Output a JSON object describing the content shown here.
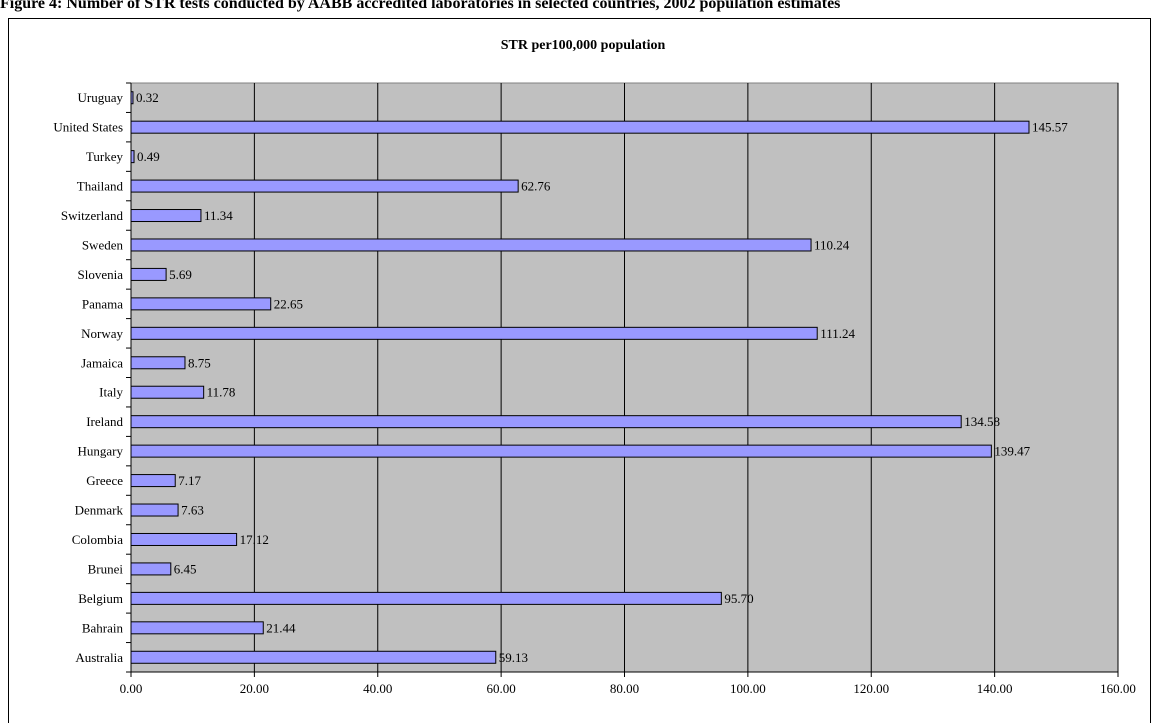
{
  "caption": "Figure 4: Number of STR tests conducted by AABB accredited laboratories in selected countries, 2002 population estimates",
  "chart_data": {
    "type": "bar",
    "orientation": "horizontal",
    "title": "STR per100,000 population",
    "xlabel": "",
    "ylabel": "",
    "xlim": [
      0,
      160
    ],
    "x_ticks": [
      "0.00",
      "20.00",
      "40.00",
      "60.00",
      "80.00",
      "100.00",
      "120.00",
      "140.00",
      "160.00"
    ],
    "grid": "vertical",
    "legend": "none",
    "colors": {
      "bar": "#9999FF",
      "plot_bg": "#C0C0C0",
      "bar_edge": "#000000"
    },
    "categories": [
      "Uruguay",
      "United States",
      "Turkey",
      "Thailand",
      "Switzerland",
      "Sweden",
      "Slovenia",
      "Panama",
      "Norway",
      "Jamaica",
      "Italy",
      "Ireland",
      "Hungary",
      "Greece",
      "Denmark",
      "Colombia",
      "Brunei",
      "Belgium",
      "Bahrain",
      "Australia"
    ],
    "values": [
      0.32,
      145.57,
      0.49,
      62.76,
      11.34,
      110.24,
      5.69,
      22.65,
      111.24,
      8.75,
      11.78,
      134.58,
      139.47,
      7.17,
      7.63,
      17.12,
      6.45,
      95.7,
      21.44,
      59.13
    ],
    "value_labels": [
      "0.32",
      "145.57",
      "0.49",
      "62.76",
      "11.34",
      "110.24",
      "5.69",
      "22.65",
      "111.24",
      "8.75",
      "11.78",
      "134.58",
      "139.47",
      "7.17",
      "7.63",
      "17.12",
      "6.45",
      "95.70",
      "21.44",
      "59.13"
    ]
  }
}
